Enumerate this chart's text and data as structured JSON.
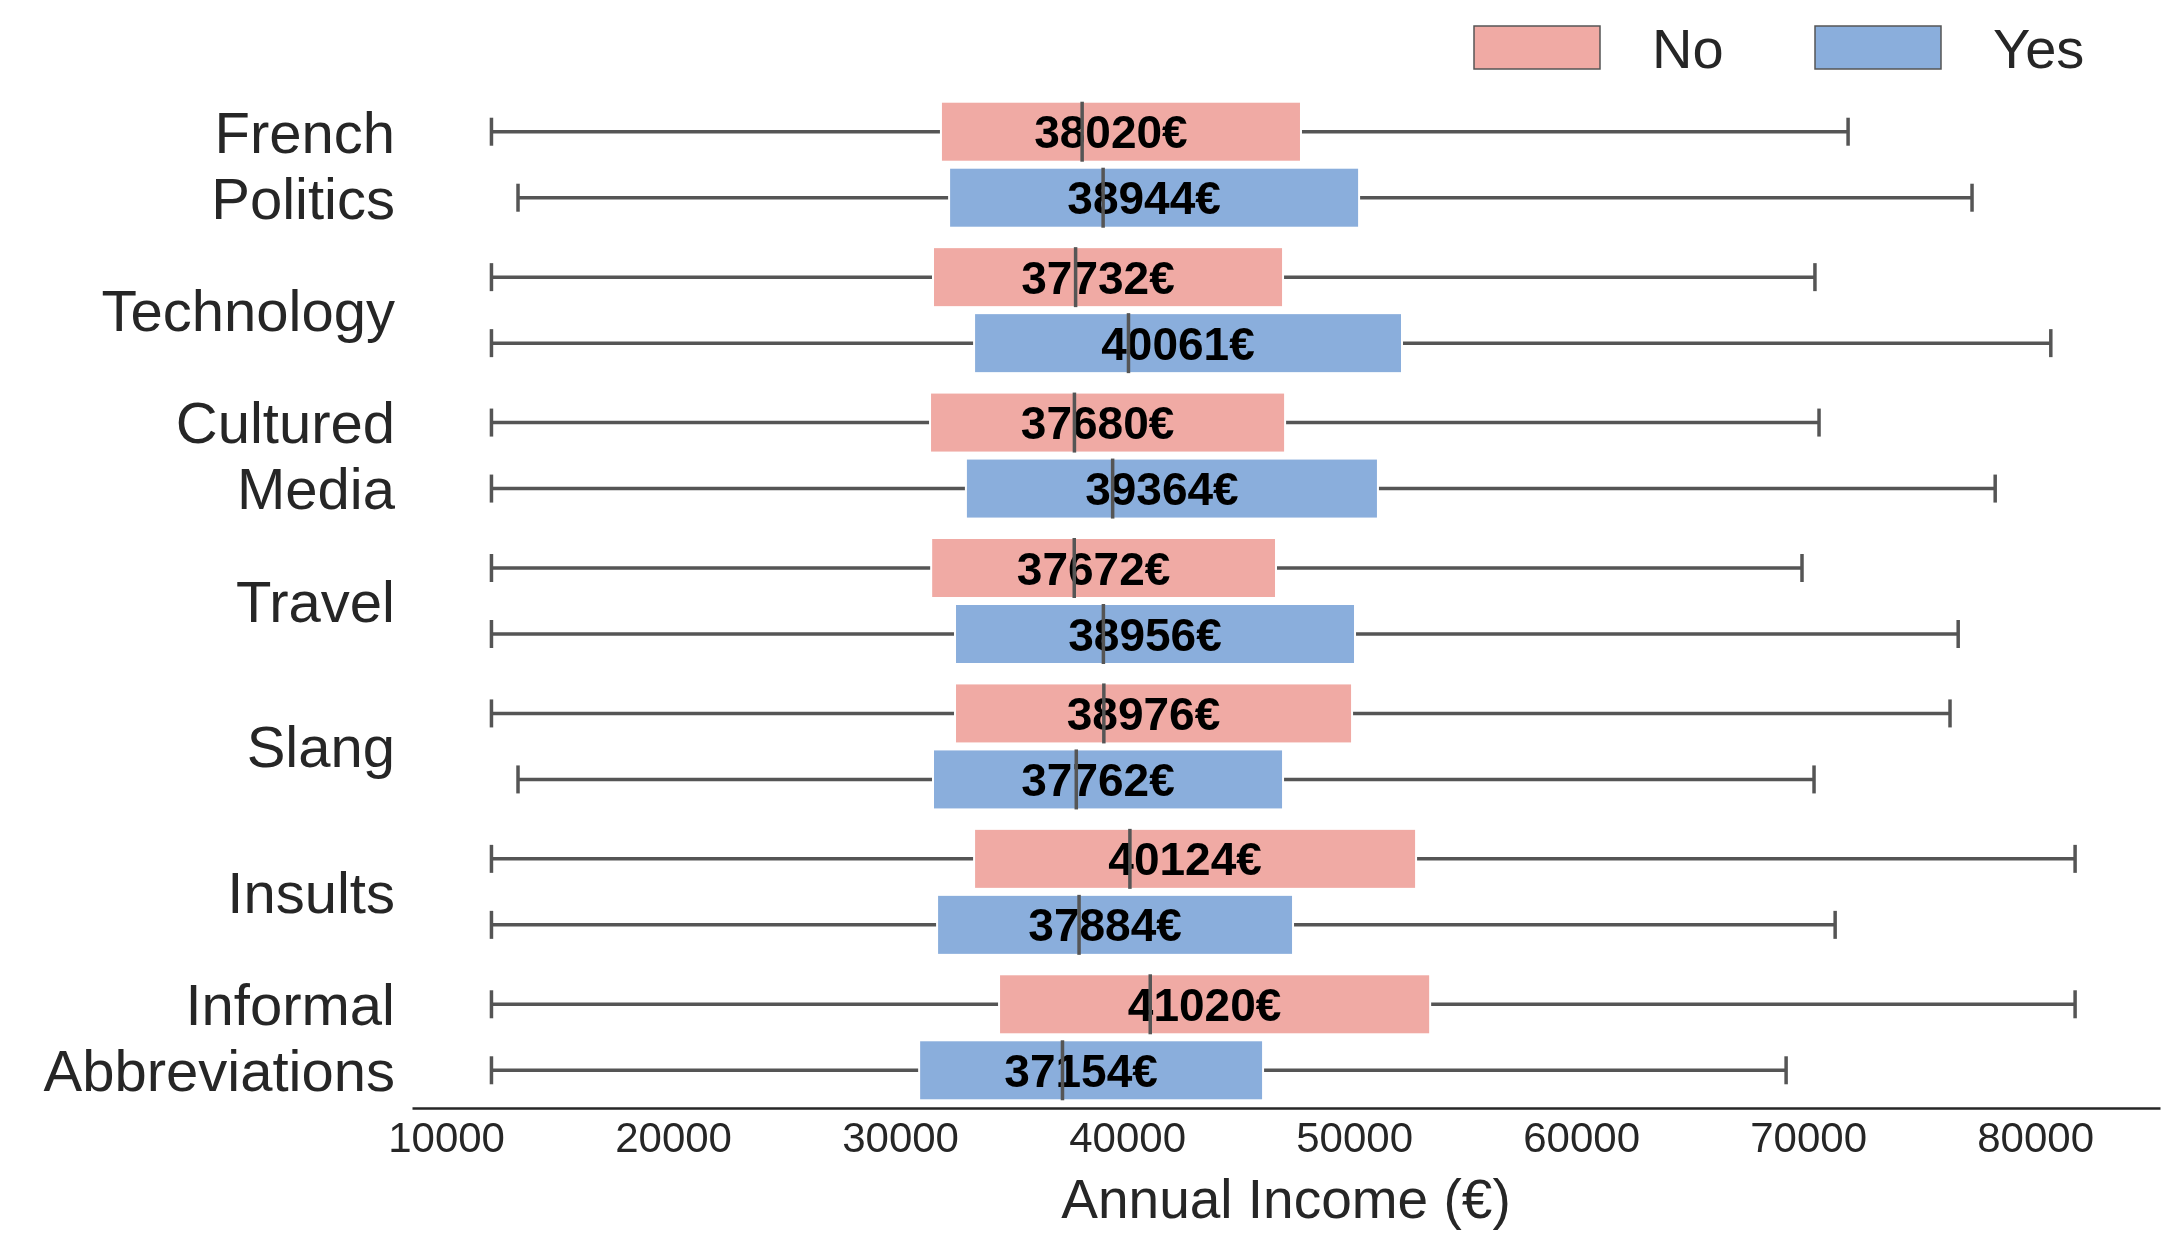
{
  "chart_data": {
    "type": "box",
    "orientation": "horizontal",
    "xlabel": "Annual Income (€)",
    "categories": [
      "French Politics",
      "Technology",
      "Cultured Media",
      "Travel",
      "Slang",
      "Insults",
      "Informal Abbreviations"
    ],
    "xlim": [
      8500,
      85500
    ],
    "xticks": [
      10000,
      20000,
      30000,
      40000,
      50000,
      60000,
      70000,
      80000
    ],
    "legend": "top right",
    "grid": false,
    "series": [
      {
        "name": "No",
        "color": "#f0aaa4",
        "value_labels": [
          "38020€",
          "37732€",
          "37680€",
          "37672€",
          "38976€",
          "40124€",
          "41020€"
        ],
        "boxes": [
          {
            "low": 12000,
            "q1": 31800,
            "median": 38020,
            "q3": 47660,
            "high": 71760
          },
          {
            "low": 12000,
            "q1": 31450,
            "median": 37732,
            "q3": 46870,
            "high": 70300
          },
          {
            "low": 12000,
            "q1": 31320,
            "median": 37680,
            "q3": 46960,
            "high": 70480
          },
          {
            "low": 12000,
            "q1": 31370,
            "median": 37672,
            "q3": 46560,
            "high": 69730
          },
          {
            "low": 12000,
            "q1": 32420,
            "median": 38976,
            "q3": 49910,
            "high": 76250
          },
          {
            "low": 12000,
            "q1": 33260,
            "median": 40124,
            "q3": 52730,
            "high": 81760
          },
          {
            "low": 12000,
            "q1": 34360,
            "median": 41020,
            "q3": 53350,
            "high": 81760
          }
        ]
      },
      {
        "name": "Yes",
        "color": "#8aaedc",
        "value_labels": [
          "38944€",
          "40061€",
          "39364€",
          "38956€",
          "37762€",
          "37884€",
          "37154€"
        ],
        "boxes": [
          {
            "low": 13170,
            "q1": 32160,
            "median": 38944,
            "q3": 50220,
            "high": 77220
          },
          {
            "low": 12000,
            "q1": 33260,
            "median": 40061,
            "q3": 52110,
            "high": 80690
          },
          {
            "low": 12000,
            "q1": 32900,
            "median": 39364,
            "q3": 51050,
            "high": 78240
          },
          {
            "low": 12000,
            "q1": 32420,
            "median": 38956,
            "q3": 50040,
            "high": 76610
          },
          {
            "low": 13170,
            "q1": 31450,
            "median": 37762,
            "q3": 46870,
            "high": 70260
          },
          {
            "low": 12000,
            "q1": 31630,
            "median": 37884,
            "q3": 47310,
            "high": 71190
          },
          {
            "low": 12000,
            "q1": 30840,
            "median": 37154,
            "q3": 45990,
            "high": 69030
          }
        ]
      }
    ]
  }
}
